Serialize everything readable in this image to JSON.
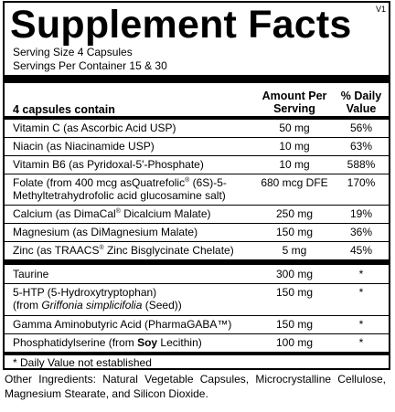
{
  "title": "Supplement Facts",
  "version": "V1",
  "serving_size": "Serving Size 4 Capsules",
  "servings_per_container": "Servings Per Container 15 & 30",
  "headers": {
    "contains": "4 capsules contain",
    "amount_line1": "Amount Per",
    "amount_line2": "Serving",
    "dv_line1": "% Daily",
    "dv_line2": "Value"
  },
  "nutrients": [
    {
      "name": "Vitamin C (as Ascorbic Acid USP)",
      "amount": "50 mg",
      "dv": "56%"
    },
    {
      "name": "Niacin (as Niacinamide USP)",
      "amount": "10 mg",
      "dv": "63%"
    },
    {
      "name": "Vitamin B6 (as Pyridoxal-5'-Phosphate)",
      "amount": "10 mg",
      "dv": "588%"
    },
    {
      "name_a": "Folate (from 400 mcg asQuatrefolic",
      "reg": "®",
      "name_b": " (6S)-5-",
      "name_line2": "Methyltetrahydrofolic acid glucosamine salt)",
      "amount": "680 mcg DFE",
      "dv": "170%"
    },
    {
      "name_a": "Calcium (as DimaCal",
      "reg": "®",
      "name_b": " Dicalcium Malate)",
      "amount": "250 mg",
      "dv": "19%"
    },
    {
      "name": "Magnesium (as DiMagnesium Malate)",
      "amount": "150 mg",
      "dv": "36%"
    },
    {
      "name_a": "Zinc (as TRAACS",
      "reg": "®",
      "name_b": " Zinc Bisglycinate Chelate)",
      "amount": "5 mg",
      "dv": "45%"
    }
  ],
  "other_items": [
    {
      "name": "Taurine",
      "amount": "300 mg",
      "dv": "*"
    },
    {
      "name": "5-HTP (5-Hydroxytryptophan)",
      "name_line2_a": "(from ",
      "name_line2_italic": "Griffonia simplicifolia",
      "name_line2_b": " (Seed))",
      "amount": "150 mg",
      "dv": "*"
    },
    {
      "name": "Gamma Aminobutyric Acid (PharmaGABA™)",
      "amount": "150 mg",
      "dv": "*"
    },
    {
      "name_a": "Phosphatidylserine (from ",
      "name_bold": "Soy",
      "name_b": " Lecithin)",
      "amount": "100 mg",
      "dv": "*"
    }
  ],
  "footnote": "* Daily Value not established",
  "other_ingredients": "Other Ingredients: Natural Vegetable Capsules, Microcrystalline Cellulose, Magnesium Stearate, and Silicon Dioxide."
}
